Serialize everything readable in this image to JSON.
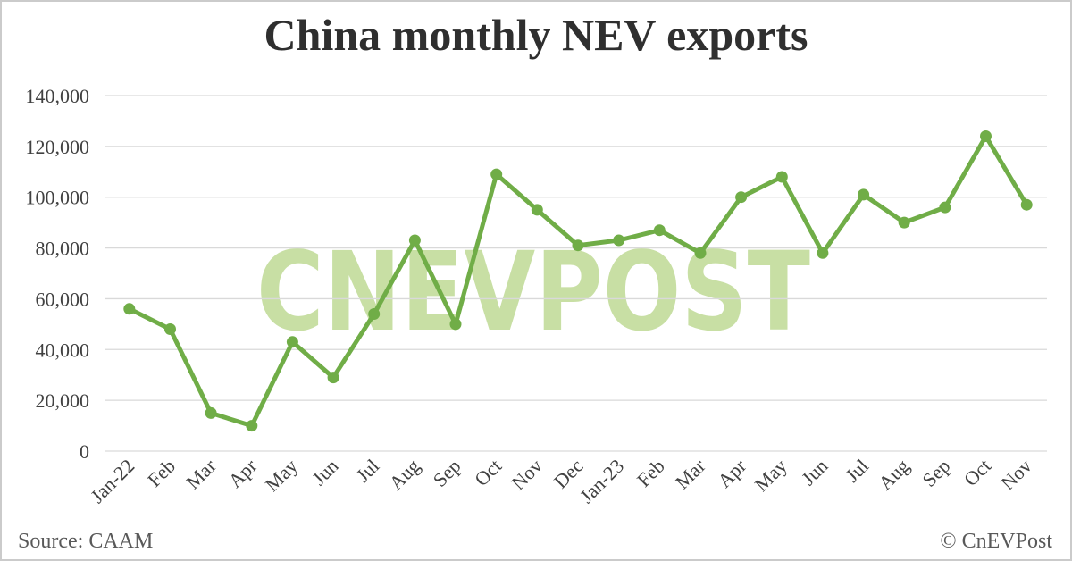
{
  "watermark": "CNEVPOST",
  "footer": {
    "source": "Source: CAAM",
    "copyright": "© CnEVPost"
  },
  "colors": {
    "line": "#70ad47",
    "marker": "#70ad47",
    "watermark": "#c8dfa4",
    "gridline": "#d9d9d9",
    "axis_text": "#414141",
    "footer_text": "#595959",
    "frame_border": "#cbcbcb"
  },
  "chart_data": {
    "type": "line",
    "title": "China monthly NEV exports",
    "xlabel": "",
    "ylabel": "",
    "categories": [
      "Jan-22",
      "Feb",
      "Mar",
      "Apr",
      "May",
      "Jun",
      "Jul",
      "Aug",
      "Sep",
      "Oct",
      "Nov",
      "Dec",
      "Jan-23",
      "Feb",
      "Mar",
      "Apr",
      "May",
      "Jun",
      "Jul",
      "Aug",
      "Sep",
      "Oct",
      "Nov"
    ],
    "values": [
      56000,
      48000,
      15000,
      10000,
      43000,
      29000,
      54000,
      83000,
      50000,
      109000,
      95000,
      81000,
      83000,
      87000,
      78000,
      100000,
      108000,
      78000,
      101000,
      90000,
      96000,
      124000,
      97000
    ],
    "ylim": [
      0,
      140000
    ],
    "ytick_step": 20000,
    "grid": "horizontal",
    "legend": "none",
    "marker": "circle",
    "x_label_rotation": -45
  }
}
